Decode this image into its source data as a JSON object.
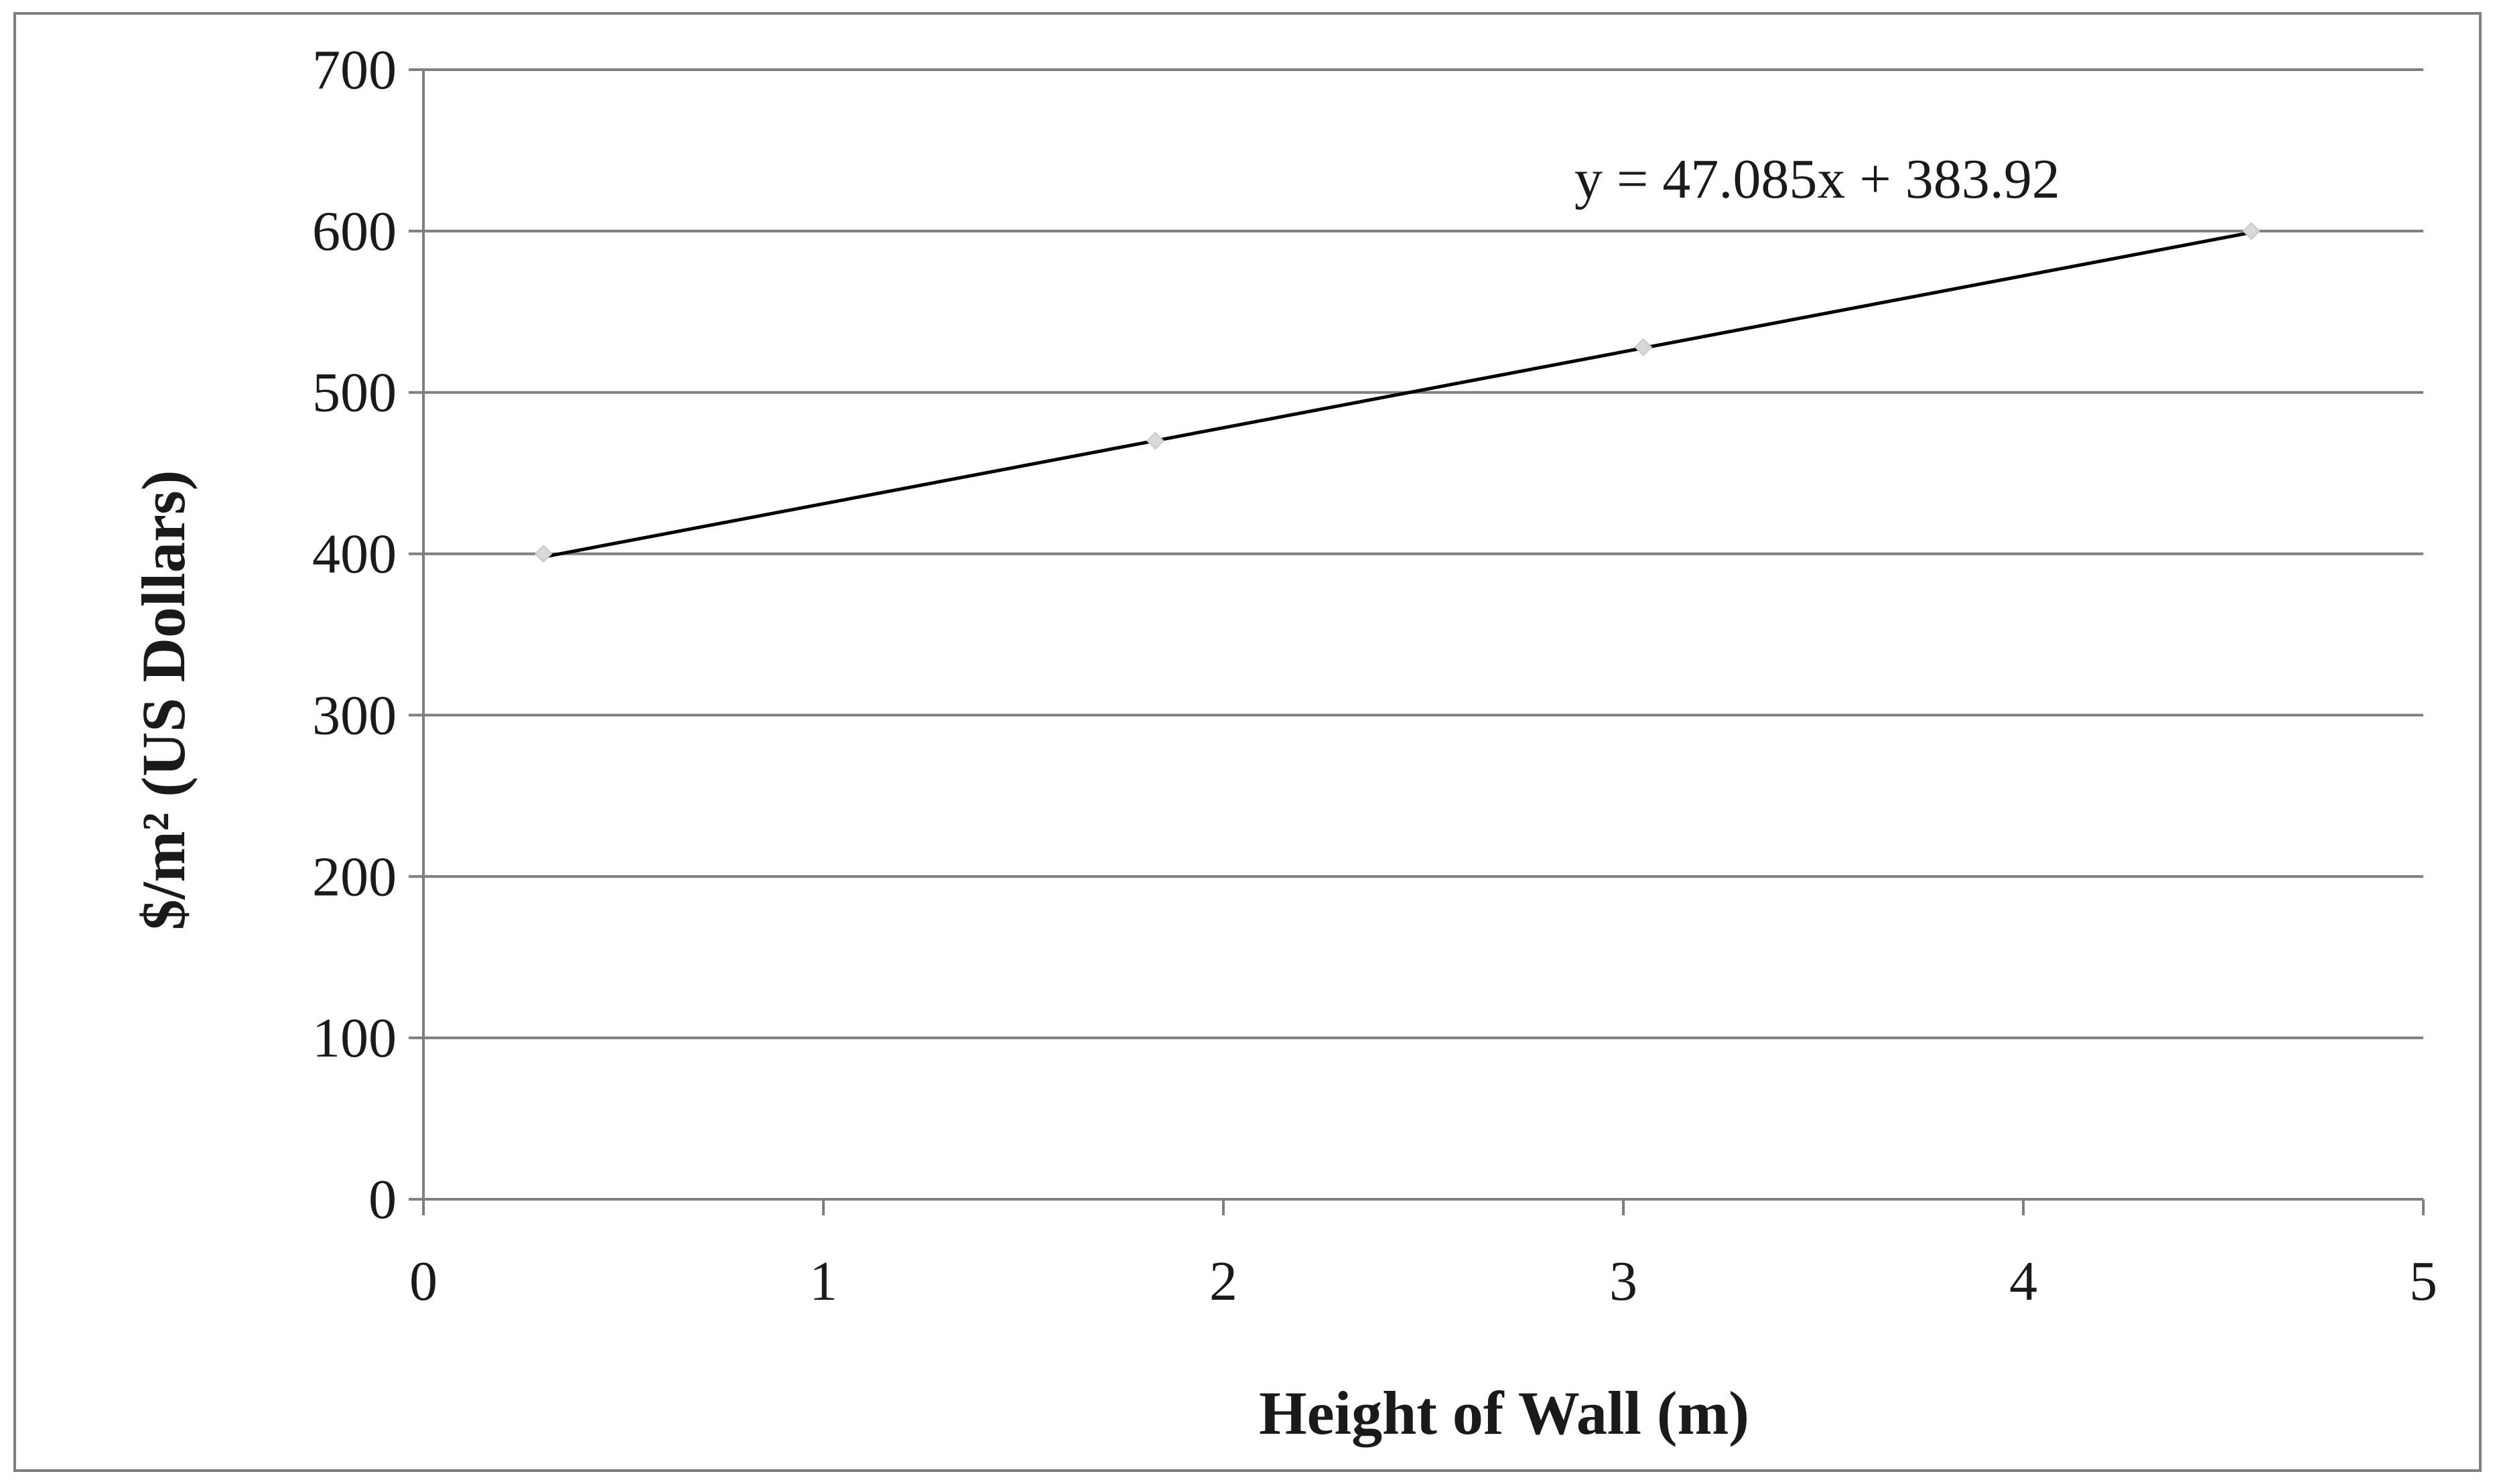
{
  "chart_data": {
    "type": "scatter",
    "title": "",
    "xlabel": "Height of Wall (m)",
    "ylabel": "$/m² (US Dollars)",
    "xlim": [
      0,
      5
    ],
    "ylim": [
      0,
      700
    ],
    "x_ticks": [
      0,
      1,
      2,
      3,
      4,
      5
    ],
    "y_ticks": [
      0,
      100,
      200,
      300,
      400,
      500,
      600,
      700
    ],
    "grid": "horizontal",
    "legend": "none",
    "series": [
      {
        "x": [
          0.3,
          1.83,
          3.05,
          4.57
        ],
        "y": [
          400,
          470,
          528,
          600
        ],
        "marker": "diamond",
        "marker_color": "#d9d9d9"
      }
    ],
    "trendline": {
      "type": "linear",
      "slope": 47.085,
      "intercept": 383.92,
      "x_range": [
        0.3,
        4.57
      ],
      "color": "#000000"
    },
    "annotations": [
      {
        "text": "y = 47.085x + 383.92"
      }
    ]
  }
}
